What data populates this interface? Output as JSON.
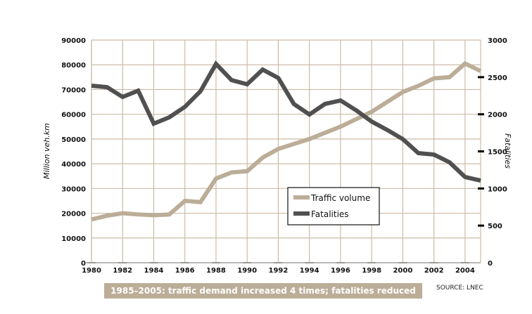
{
  "chart_data": {
    "type": "line",
    "x": [
      1980,
      1981,
      1982,
      1983,
      1984,
      1985,
      1986,
      1987,
      1988,
      1989,
      1990,
      1991,
      1992,
      1993,
      1994,
      1995,
      1996,
      1997,
      1998,
      1999,
      2000,
      2001,
      2002,
      2003,
      2004,
      2005
    ],
    "series": [
      {
        "name": "Traffic volume",
        "axis": "left",
        "color": "#bcad98",
        "values": [
          17500,
          19000,
          20000,
          19500,
          19200,
          19500,
          25000,
          24500,
          34000,
          36500,
          37000,
          42500,
          46000,
          48000,
          50000,
          52500,
          55000,
          58000,
          61000,
          65000,
          69000,
          71500,
          74500,
          75000,
          80500,
          77500
        ]
      },
      {
        "name": "Fatalities",
        "axis": "right",
        "color": "#505050",
        "values": [
          2385,
          2365,
          2233,
          2318,
          1874,
          1959,
          2100,
          2310,
          2678,
          2460,
          2404,
          2602,
          2489,
          2139,
          1997,
          2139,
          2186,
          2054,
          1902,
          1789,
          1665,
          1476,
          1457,
          1353,
          1155,
          1107
        ]
      }
    ],
    "ylabel": "Million veh.km",
    "y2label": "Fatalities",
    "ylim": [
      0,
      90000
    ],
    "y2lim": [
      0,
      3000
    ],
    "xlim": [
      1980,
      2005
    ],
    "xticks": [
      "1980",
      "1982",
      "1984",
      "1986",
      "1988",
      "1990",
      "1992",
      "1994",
      "1996",
      "1998",
      "2000",
      "2002",
      "2004"
    ],
    "yticks": [
      "0",
      "10000",
      "20000",
      "30000",
      "40000",
      "50000",
      "60000",
      "70000",
      "80000",
      "90000"
    ],
    "y2ticks": [
      "0",
      "500",
      "1000",
      "1500",
      "2000",
      "2500",
      "3000"
    ],
    "legend": "center-right",
    "grid": true
  },
  "caption": "1985–2005: traffic demand increased 4 times; fatalities reduced by 50%",
  "source": "SOURCE: LNEC"
}
